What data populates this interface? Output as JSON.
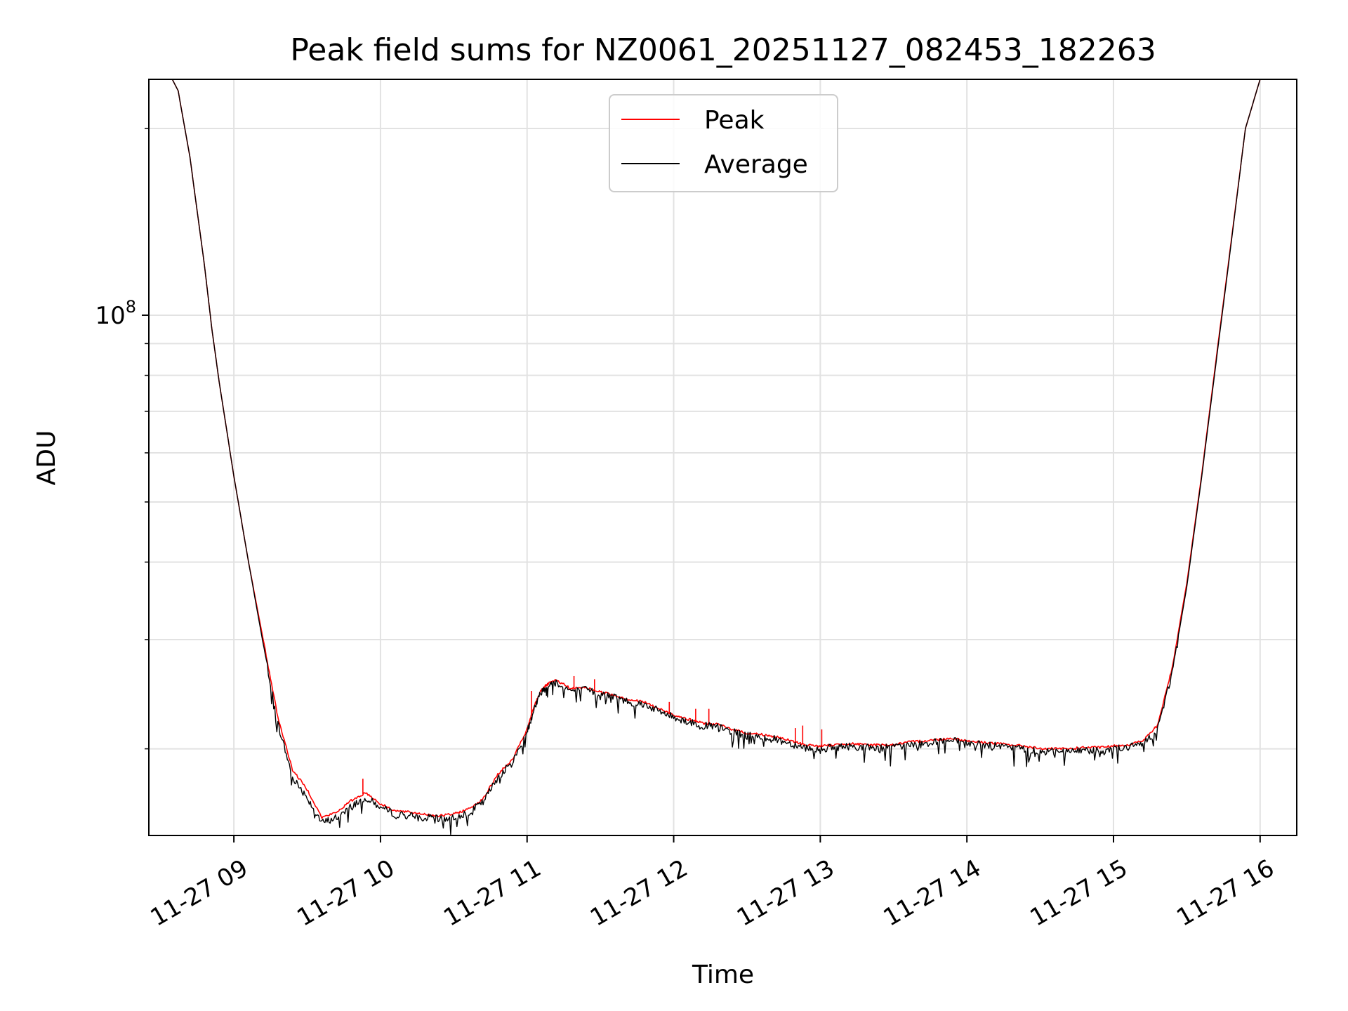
{
  "chart_data": {
    "type": "line",
    "title": "Peak field sums for NZ0061_20251127_082453_182263",
    "xlabel": "Time",
    "ylabel": "ADU",
    "yscale": "log",
    "ylim": [
      14500000,
      240000000
    ],
    "xlim_hours": [
      8.42,
      16.25
    ],
    "grid": true,
    "legend_position": "upper center",
    "x_tick_labels": [
      {
        "hour": 9,
        "label": "11-27 09"
      },
      {
        "hour": 10,
        "label": "11-27 10"
      },
      {
        "hour": 11,
        "label": "11-27 11"
      },
      {
        "hour": 12,
        "label": "11-27 12"
      },
      {
        "hour": 13,
        "label": "11-27 13"
      },
      {
        "hour": 14,
        "label": "11-27 14"
      },
      {
        "hour": 15,
        "label": "11-27 15"
      },
      {
        "hour": 16,
        "label": "11-27 16"
      }
    ],
    "y_tick_labels": [
      {
        "value": 100000000,
        "base": "10",
        "exponent": "8"
      }
    ],
    "y_minor_ticks": [
      20000000,
      30000000,
      40000000,
      50000000,
      60000000,
      70000000,
      80000000,
      90000000,
      200000000
    ],
    "series": [
      {
        "name": "Peak",
        "color": "#ff0000",
        "x_hours": [
          8.58,
          8.62,
          8.7,
          8.8,
          8.85,
          8.9,
          9.0,
          9.1,
          9.2,
          9.3,
          9.4,
          9.5,
          9.6,
          9.7,
          9.8,
          9.9,
          10.0,
          10.1,
          10.2,
          10.3,
          10.4,
          10.5,
          10.6,
          10.7,
          10.8,
          10.9,
          11.0,
          11.05,
          11.1,
          11.15,
          11.2,
          11.3,
          11.4,
          11.5,
          11.6,
          11.7,
          11.8,
          11.9,
          12.0,
          12.1,
          12.2,
          12.3,
          12.4,
          12.5,
          12.6,
          12.7,
          12.8,
          12.9,
          13.0,
          13.1,
          13.2,
          13.3,
          13.4,
          13.5,
          13.6,
          13.7,
          13.8,
          13.9,
          14.0,
          14.1,
          14.2,
          14.3,
          14.4,
          14.5,
          14.6,
          14.7,
          14.8,
          14.9,
          15.0,
          15.1,
          15.2,
          15.3,
          15.4,
          15.5,
          15.6,
          15.7,
          15.8,
          15.9,
          16.0,
          16.05
        ],
        "values": [
          240000000,
          230000000,
          180000000,
          120000000,
          95000000,
          78000000,
          55000000,
          40000000,
          30000000,
          22500000,
          18500000,
          17200000,
          15500000,
          15800000,
          16500000,
          17000000,
          16300000,
          15900000,
          15800000,
          15700000,
          15600000,
          15700000,
          16000000,
          16600000,
          18200000,
          19200000,
          21500000,
          23500000,
          25000000,
          25500000,
          25800000,
          25000000,
          25100000,
          24700000,
          24400000,
          24000000,
          23800000,
          23200000,
          22700000,
          22300000,
          22000000,
          21900000,
          21500000,
          21200000,
          21100000,
          20900000,
          20600000,
          20300000,
          20200000,
          20300000,
          20400000,
          20300000,
          20300000,
          20300000,
          20500000,
          20600000,
          20700000,
          20800000,
          20600000,
          20500000,
          20400000,
          20300000,
          20200000,
          20000000,
          20000000,
          20000000,
          20100000,
          20100000,
          20200000,
          20300000,
          20600000,
          21800000,
          27000000,
          37000000,
          55000000,
          85000000,
          130000000,
          200000000,
          240000000,
          240000000
        ],
        "spikes": [
          {
            "hour": 9.88,
            "peak": 17900000
          },
          {
            "hour": 11.03,
            "peak": 24800000
          },
          {
            "hour": 11.32,
            "peak": 26200000
          },
          {
            "hour": 11.46,
            "peak": 25900000
          },
          {
            "hour": 11.97,
            "peak": 23800000
          },
          {
            "hour": 12.15,
            "peak": 23200000
          },
          {
            "hour": 12.24,
            "peak": 23200000
          },
          {
            "hour": 12.83,
            "peak": 21600000
          },
          {
            "hour": 12.88,
            "peak": 21800000
          },
          {
            "hour": 13.01,
            "peak": 21500000
          },
          {
            "hour": 15.28,
            "peak": 21700000
          }
        ]
      },
      {
        "name": "Average",
        "color": "#000000",
        "x_hours": [
          8.58,
          8.62,
          8.7,
          8.8,
          8.85,
          8.9,
          9.0,
          9.1,
          9.2,
          9.3,
          9.4,
          9.5,
          9.6,
          9.7,
          9.8,
          9.9,
          10.0,
          10.1,
          10.2,
          10.3,
          10.4,
          10.5,
          10.6,
          10.7,
          10.8,
          10.9,
          11.0,
          11.05,
          11.1,
          11.15,
          11.2,
          11.3,
          11.4,
          11.5,
          11.6,
          11.7,
          11.8,
          11.9,
          12.0,
          12.1,
          12.2,
          12.3,
          12.4,
          12.5,
          12.6,
          12.7,
          12.8,
          12.9,
          13.0,
          13.1,
          13.2,
          13.3,
          13.4,
          13.5,
          13.6,
          13.7,
          13.8,
          13.9,
          14.0,
          14.1,
          14.2,
          14.3,
          14.4,
          14.5,
          14.6,
          14.7,
          14.8,
          14.9,
          15.0,
          15.1,
          15.2,
          15.3,
          15.4,
          15.5,
          15.6,
          15.7,
          15.8,
          15.9,
          16.0,
          16.05
        ],
        "values": [
          240000000,
          230000000,
          180000000,
          120000000,
          95000000,
          78000000,
          55000000,
          40000000,
          29500000,
          22000000,
          18000000,
          16700000,
          15200000,
          15500000,
          16200000,
          16700000,
          16100000,
          15700000,
          15600000,
          15500000,
          15400000,
          15500000,
          15800000,
          16400000,
          18000000,
          19000000,
          21300000,
          23300000,
          24800000,
          25300000,
          25600000,
          24800000,
          24900000,
          24500000,
          24200000,
          23800000,
          23600000,
          23000000,
          22500000,
          22100000,
          21800000,
          21700000,
          21300000,
          21000000,
          20900000,
          20700000,
          20400000,
          20100000,
          20000000,
          20100000,
          20200000,
          20100000,
          20100000,
          20100000,
          20300000,
          20400000,
          20500000,
          20600000,
          20400000,
          20300000,
          20200000,
          20100000,
          20000000,
          19800000,
          19800000,
          19800000,
          19900000,
          19900000,
          20000000,
          20100000,
          20400000,
          21500000,
          26500000,
          36500000,
          54500000,
          84000000,
          129000000,
          200000000,
          240000000,
          240000000
        ]
      }
    ]
  }
}
